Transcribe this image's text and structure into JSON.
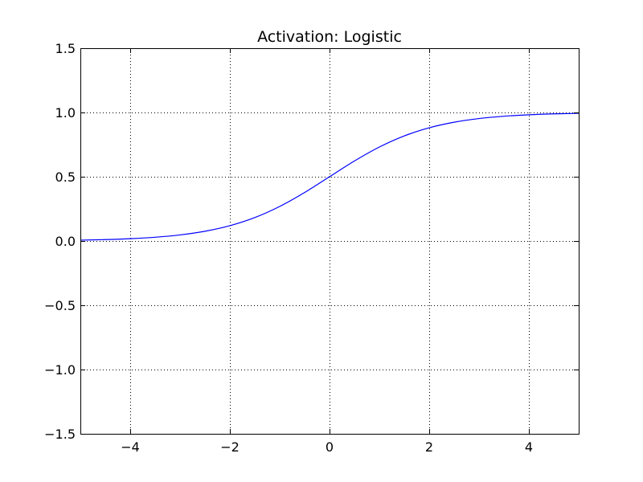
{
  "chart_data": {
    "type": "line",
    "title": "Activation: Logistic",
    "xlabel": "",
    "ylabel": "",
    "xlim": [
      -5,
      5
    ],
    "ylim": [
      -1.5,
      1.5
    ],
    "grid": true,
    "x_ticks": [
      -4,
      -2,
      0,
      2,
      4
    ],
    "x_tick_labels": [
      "−4",
      "−2",
      "0",
      "2",
      "4"
    ],
    "y_ticks": [
      -1.5,
      -1.0,
      -0.5,
      0.0,
      0.5,
      1.0,
      1.5
    ],
    "y_tick_labels": [
      "−1.5",
      "−1.0",
      "−0.5",
      "0.0",
      "0.5",
      "1.0",
      "1.5"
    ],
    "series": [
      {
        "color": "#0000ff",
        "x": [
          -5,
          -4.5,
          -4,
          -3.5,
          -3,
          -2.5,
          -2,
          -1.5,
          -1,
          -0.5,
          0,
          0.5,
          1,
          1.5,
          2,
          2.5,
          3,
          3.5,
          4,
          4.5,
          5
        ],
        "y": [
          0.0067,
          0.011,
          0.018,
          0.0293,
          0.0474,
          0.0759,
          0.1192,
          0.1824,
          0.2689,
          0.3775,
          0.5,
          0.6225,
          0.7311,
          0.8176,
          0.8808,
          0.9241,
          0.9526,
          0.9707,
          0.982,
          0.989,
          0.9933
        ]
      }
    ]
  }
}
